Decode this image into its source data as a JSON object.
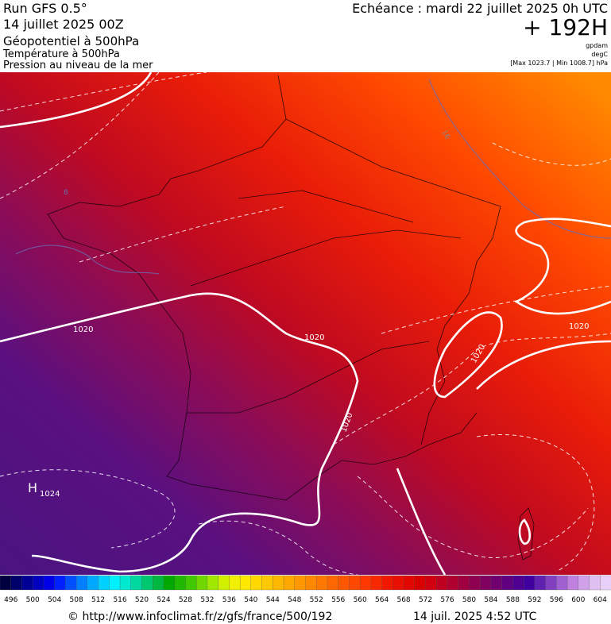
{
  "header": {
    "run": "Run GFS 0.5°",
    "date": "14 juillet 2025 00Z",
    "field": "Géopotentiel à 500hPa",
    "field2": "Température à 500hPa",
    "field3": "Pression au niveau de la mer",
    "forecast": "Echéance : mardi 22 juillet 2025 0h UTC",
    "lead": "+ 192H",
    "unit1": "gpdam",
    "unit2": "degC",
    "range": "[Max 1023.7 | Min 1008.7] hPa"
  },
  "map": {
    "contour_labels": [
      "1020",
      "1020",
      "1020",
      "1020",
      "1020"
    ],
    "high": "H",
    "high_value": "1024",
    "iso_labels": [
      "16",
      "8"
    ]
  },
  "colorbar": {
    "labels": [
      496,
      500,
      504,
      508,
      512,
      516,
      520,
      524,
      528,
      532,
      536,
      540,
      544,
      548,
      552,
      556,
      560,
      564,
      568,
      572,
      576,
      580,
      584,
      588,
      592,
      596,
      600,
      604
    ],
    "colors": [
      "#000040",
      "#00006a",
      "#000094",
      "#0000be",
      "#0000e8",
      "#0020ff",
      "#0050ff",
      "#0080ff",
      "#00a8ff",
      "#00d0ff",
      "#00f0ff",
      "#00e8d0",
      "#00d8a0",
      "#00c870",
      "#00b840",
      "#00a800",
      "#20b800",
      "#40c800",
      "#70d800",
      "#a0e800",
      "#d0f000",
      "#f0f000",
      "#ffe800",
      "#ffd800",
      "#ffc800",
      "#ffb800",
      "#ffa800",
      "#ff9800",
      "#ff8800",
      "#ff7800",
      "#ff6800",
      "#ff5800",
      "#ff4800",
      "#ff3800",
      "#f82800",
      "#f01800",
      "#e81000",
      "#e00800",
      "#d80000",
      "#d00010",
      "#c00020",
      "#b00030",
      "#a00040",
      "#900050",
      "#800060",
      "#700070",
      "#600080",
      "#500090",
      "#4000a0",
      "#6020b0",
      "#8040c0",
      "#a060d0",
      "#c080e0",
      "#d0a0e8",
      "#e0c0f0",
      "#e8d0f8"
    ]
  },
  "footer": {
    "url": "© http://www.infoclimat.fr/z/gfs/france/500/192",
    "timestamp": "14 juil. 2025  4:52 UTC"
  }
}
